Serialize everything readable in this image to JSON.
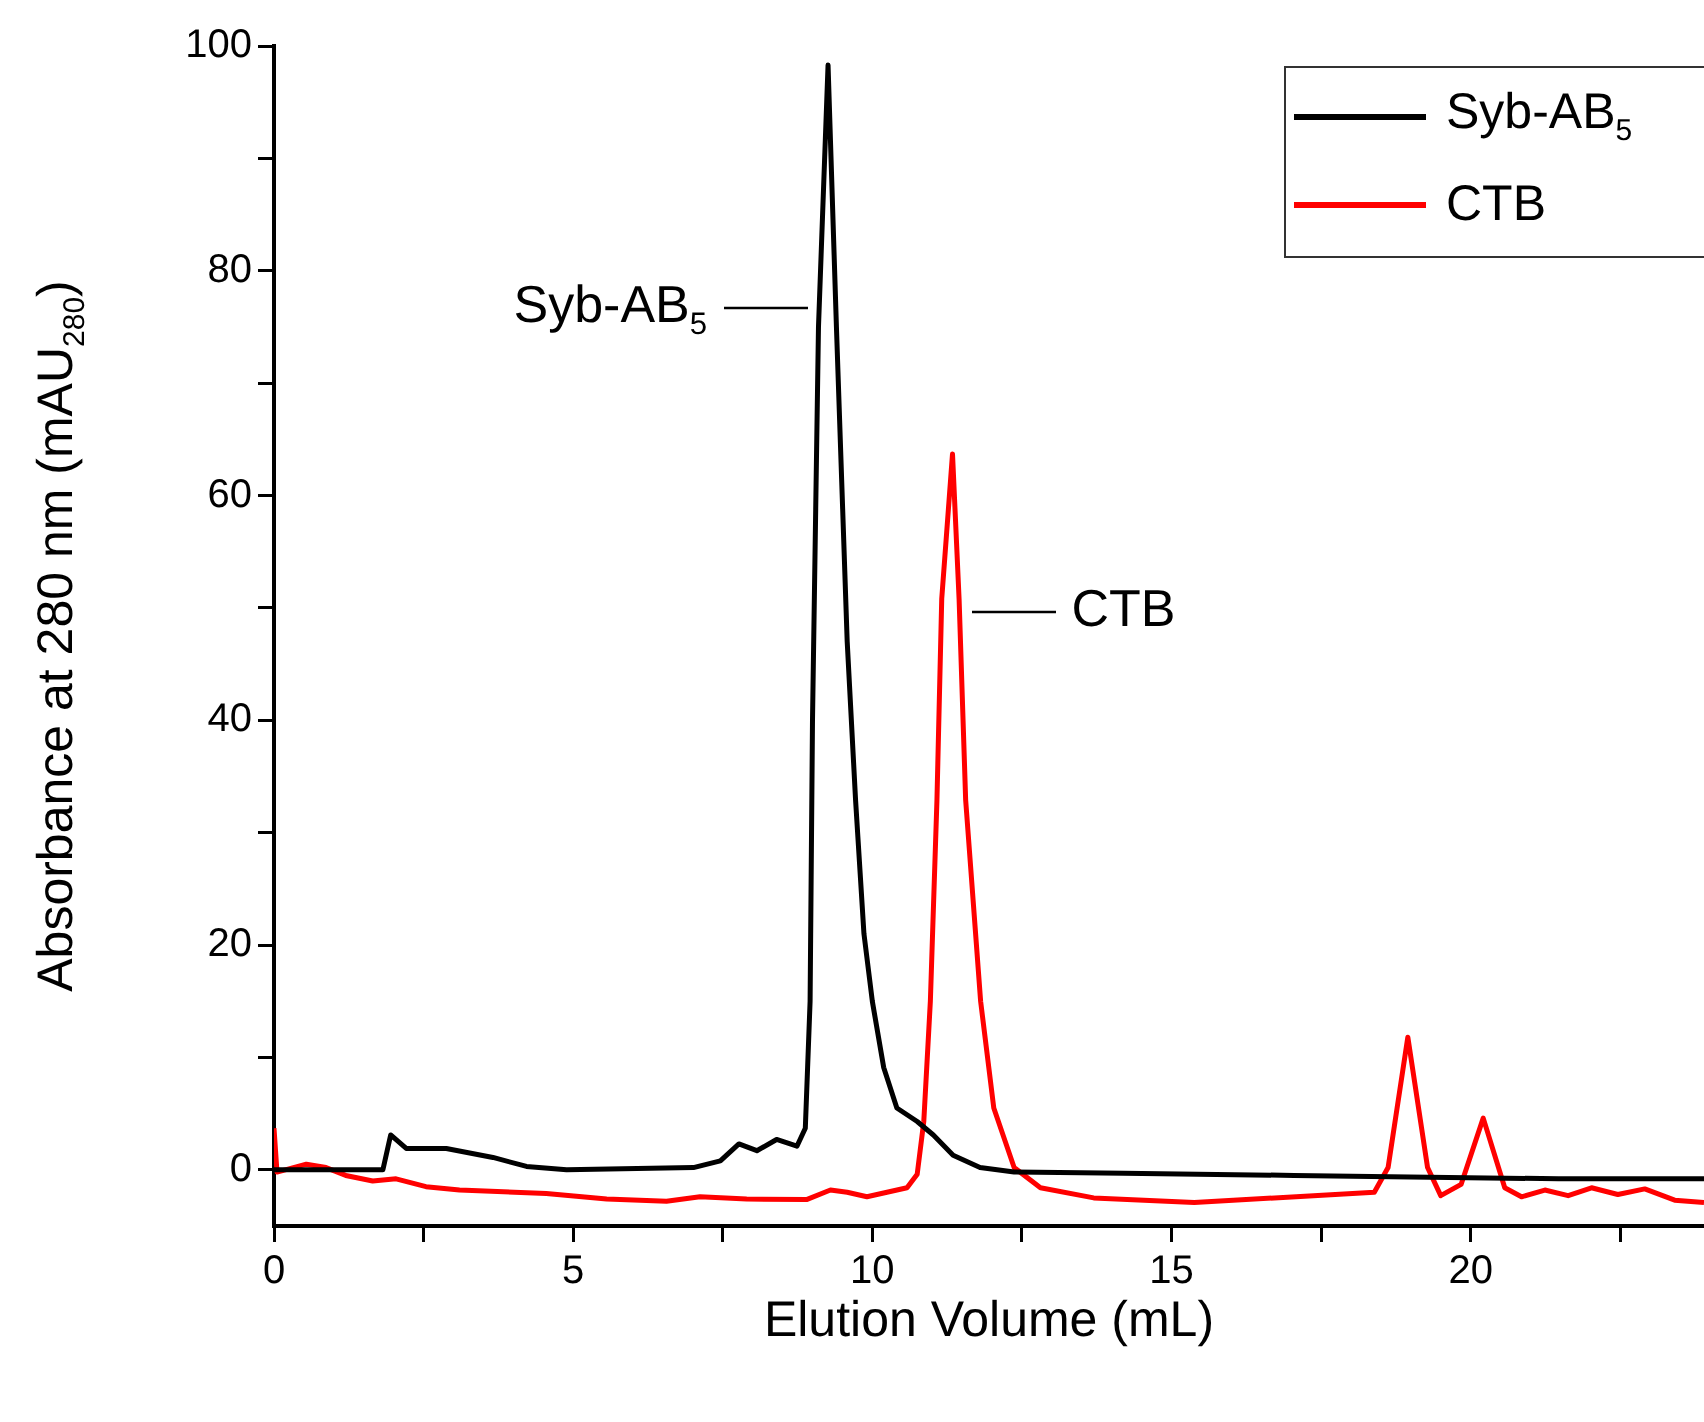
{
  "chart_data": {
    "type": "line",
    "xlabel": "Elution Volume (mL)",
    "ylabel": "Absorbance at 280 nm (mAU$_{280}$)",
    "xlim": [
      0,
      23.9
    ],
    "ylim": [
      -5,
      100
    ],
    "xticks": [
      0,
      {
        "value": 2.5,
        "label": null
      },
      5,
      {
        "value": 7.5,
        "label": null
      },
      10,
      {
        "value": 12.5,
        "label": null
      },
      15,
      {
        "value": 17.5,
        "label": null
      },
      20,
      {
        "value": 22.5,
        "label": null
      }
    ],
    "yticks": [
      0,
      {
        "value": 10,
        "label": null
      },
      20,
      {
        "value": 30,
        "label": null
      },
      40,
      {
        "value": 50,
        "label": null
      },
      60,
      {
        "value": 70,
        "label": null
      },
      80,
      {
        "value": 90,
        "label": null
      },
      100
    ],
    "grid": false,
    "legend": "top right",
    "marker": "none",
    "line_style": "solid",
    "series": [
      {
        "name": "Syb-AB$_{5}$",
        "color": "#000000",
        "x": [
          0,
          1.82,
          1.95,
          2.21,
          2.88,
          3.66,
          4.22,
          4.89,
          7.01,
          7.46,
          7.77,
          8.07,
          8.4,
          8.74,
          8.88,
          8.96,
          9.0,
          9.1,
          9.26,
          9.4,
          9.58,
          9.72,
          9.86,
          10.0,
          10.19,
          10.41,
          10.75,
          11.02,
          11.35,
          11.8,
          12.37,
          14.2,
          17.05,
          21.47,
          23.9
        ],
        "values": [
          0,
          0,
          3.1,
          1.9,
          1.9,
          1.1,
          0.3,
          0,
          0.2,
          0.8,
          2.3,
          1.7,
          2.7,
          2.1,
          3.7,
          15,
          40,
          75,
          98.3,
          75,
          47,
          32.9,
          21,
          15,
          9.1,
          5.5,
          4.3,
          3.1,
          1.3,
          0.2,
          -0.2,
          -0.3,
          -0.5,
          -0.8,
          -0.8
        ]
      },
      {
        "name": "CTB",
        "color": "#ff0000",
        "x": [
          0,
          0.05,
          0.54,
          0.87,
          1.2,
          1.65,
          2.04,
          2.54,
          3.1,
          4.55,
          5.56,
          6.56,
          7.12,
          7.9,
          8.9,
          9.3,
          9.58,
          9.91,
          10.58,
          10.75,
          10.86,
          10.97,
          11.08,
          11.16,
          11.34,
          11.45,
          11.56,
          11.81,
          12.03,
          12.37,
          12.81,
          13.7,
          15.38,
          18.39,
          18.62,
          18.95,
          19.28,
          19.5,
          19.84,
          20.21,
          20.57,
          20.85,
          21.24,
          21.63,
          22.02,
          22.46,
          22.91,
          23.41,
          23.9
        ],
        "values": [
          3.7,
          -0.2,
          0.5,
          0.2,
          -0.5,
          -1.0,
          -0.8,
          -1.5,
          -1.8,
          -2.1,
          -2.6,
          -2.8,
          -2.4,
          -2.6,
          -2.65,
          -1.8,
          -2.0,
          -2.4,
          -1.6,
          -0.4,
          4.3,
          15,
          32.9,
          50.8,
          63.7,
          50.8,
          32.9,
          15,
          5.5,
          0.2,
          -1.6,
          -2.5,
          -2.9,
          -2.0,
          0.2,
          11.8,
          0.2,
          -2.3,
          -1.3,
          4.6,
          -1.6,
          -2.4,
          -1.8,
          -2.3,
          -1.6,
          -2.2,
          -1.7,
          -2.7,
          -2.9
        ]
      }
    ],
    "annotations": [
      "Syb-AB$_{5}$",
      "CTB"
    ]
  }
}
